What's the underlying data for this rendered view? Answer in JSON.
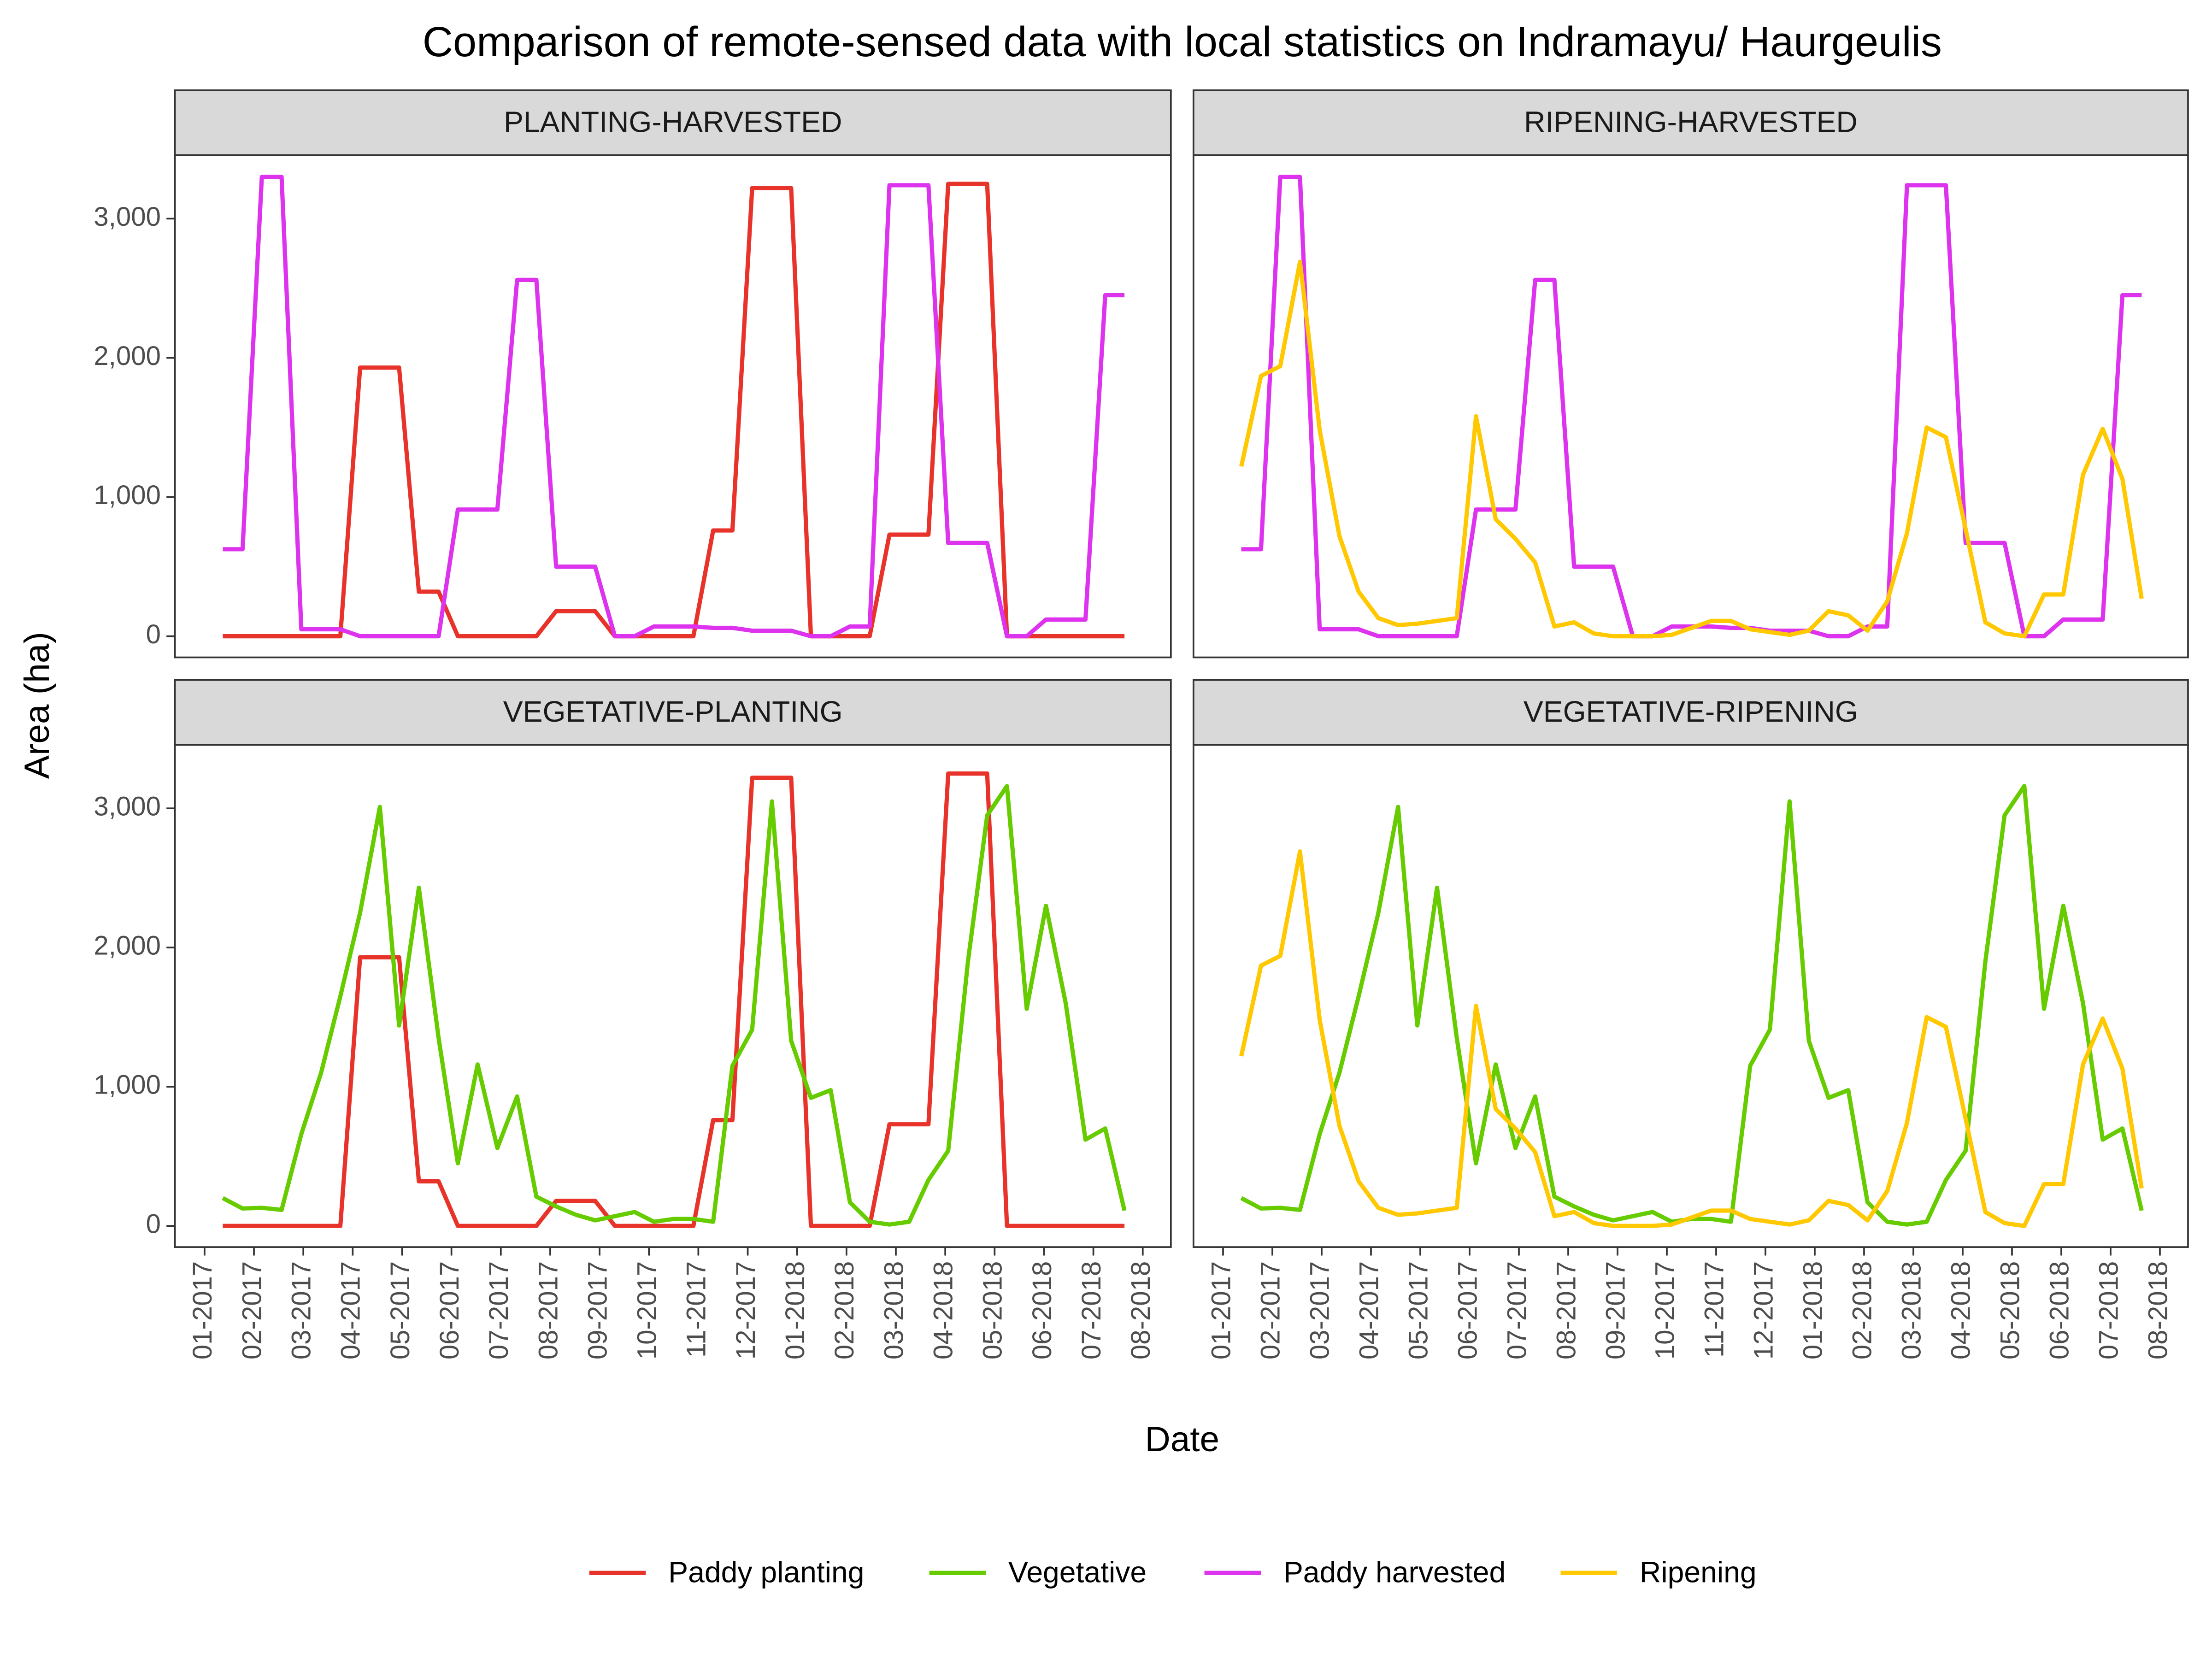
{
  "title": "Comparison of remote-sensed data with local statistics on Indramayu/ Haurgeulis",
  "x_label": "Date",
  "y_label": "Area (ha)",
  "chart_data": [
    {
      "type": "line",
      "title": "PLANTING-HARVESTED",
      "x": [
        0.37,
        0.77,
        1.16,
        1.56,
        1.96,
        2.36,
        2.75,
        3.15,
        3.55,
        3.94,
        4.34,
        4.74,
        5.13,
        5.53,
        5.93,
        6.33,
        6.72,
        7.12,
        7.52,
        7.91,
        8.31,
        8.71,
        9.1,
        9.5,
        9.9,
        10.3,
        10.69,
        11.09,
        11.49,
        11.88,
        12.28,
        12.68,
        13.07,
        13.47,
        13.87,
        14.27,
        14.66,
        15.06,
        15.46,
        15.85,
        16.25,
        16.65,
        17.04,
        17.44,
        17.84,
        18.24,
        18.63
      ],
      "xlim": [
        -0.6,
        19.57
      ],
      "ylim": [
        -152,
        3456
      ],
      "yticks": [
        0,
        {
          "value": 1000,
          "label": "1,000"
        },
        {
          "value": 2000,
          "label": "2,000"
        },
        {
          "value": 3000,
          "label": "3,000"
        }
      ],
      "series": [
        {
          "name": "Paddy planting",
          "color": "#e8332a",
          "values": [
            0,
            0,
            0,
            0,
            0,
            0,
            0,
            1930,
            1930,
            1930,
            320,
            320,
            0,
            0,
            0,
            0,
            0,
            180,
            180,
            180,
            0,
            0,
            0,
            0,
            0,
            760,
            760,
            3220,
            3220,
            3220,
            0,
            0,
            0,
            0,
            730,
            730,
            730,
            3250,
            3250,
            3250,
            0,
            0,
            0,
            0,
            0,
            0,
            0
          ]
        },
        {
          "name": "Paddy harvested",
          "color": "#dd33ee",
          "values": [
            625,
            625,
            3300,
            3300,
            50,
            50,
            50,
            0,
            0,
            0,
            0,
            0,
            910,
            910,
            910,
            2560,
            2560,
            500,
            500,
            500,
            0,
            0,
            70,
            70,
            70,
            60,
            60,
            40,
            40,
            40,
            0,
            0,
            70,
            70,
            3240,
            3240,
            3240,
            670,
            670,
            670,
            0,
            0,
            120,
            120,
            120,
            2450,
            2450
          ]
        }
      ]
    },
    {
      "type": "line",
      "title": "RIPENING-HARVESTED",
      "x": [
        0.37,
        0.77,
        1.16,
        1.56,
        1.96,
        2.36,
        2.75,
        3.15,
        3.55,
        3.94,
        4.34,
        4.74,
        5.13,
        5.53,
        5.93,
        6.33,
        6.72,
        7.12,
        7.52,
        7.91,
        8.31,
        8.71,
        9.1,
        9.5,
        9.9,
        10.3,
        10.69,
        11.09,
        11.49,
        11.88,
        12.28,
        12.68,
        13.07,
        13.47,
        13.87,
        14.27,
        14.66,
        15.06,
        15.46,
        15.85,
        16.25,
        16.65,
        17.04,
        17.44,
        17.84,
        18.24,
        18.63
      ],
      "xlim": [
        -0.6,
        19.57
      ],
      "ylim": [
        -152,
        3456
      ],
      "series": [
        {
          "name": "Paddy harvested",
          "color": "#dd33ee",
          "values": [
            625,
            625,
            3300,
            3300,
            50,
            50,
            50,
            0,
            0,
            0,
            0,
            0,
            910,
            910,
            910,
            2560,
            2560,
            500,
            500,
            500,
            0,
            0,
            70,
            70,
            70,
            60,
            60,
            40,
            40,
            40,
            0,
            0,
            70,
            70,
            3240,
            3240,
            3240,
            670,
            670,
            670,
            0,
            0,
            120,
            120,
            120,
            2450,
            2450
          ]
        },
        {
          "name": "Ripening",
          "color": "#ffc800",
          "values": [
            1220,
            1870,
            1940,
            2690,
            1480,
            720,
            320,
            130,
            80,
            90,
            110,
            130,
            1580,
            840,
            700,
            530,
            70,
            100,
            20,
            0,
            0,
            0,
            10,
            60,
            110,
            110,
            50,
            30,
            10,
            40,
            180,
            150,
            40,
            250,
            740,
            1500,
            1430,
            770,
            100,
            20,
            0,
            300,
            300,
            1160,
            1490,
            1130,
            270
          ]
        }
      ]
    },
    {
      "type": "line",
      "title": "VEGETATIVE-PLANTING",
      "x": [
        0.37,
        0.77,
        1.16,
        1.56,
        1.96,
        2.36,
        2.75,
        3.15,
        3.55,
        3.94,
        4.34,
        4.74,
        5.13,
        5.53,
        5.93,
        6.33,
        6.72,
        7.12,
        7.52,
        7.91,
        8.31,
        8.71,
        9.1,
        9.5,
        9.9,
        10.3,
        10.69,
        11.09,
        11.49,
        11.88,
        12.28,
        12.68,
        13.07,
        13.47,
        13.87,
        14.27,
        14.66,
        15.06,
        15.46,
        15.85,
        16.25,
        16.65,
        17.04,
        17.44,
        17.84,
        18.24,
        18.63
      ],
      "xlim": [
        -0.6,
        19.57
      ],
      "ylim": [
        -152,
        3456
      ],
      "yticks": [
        0,
        {
          "value": 1000,
          "label": "1,000"
        },
        {
          "value": 2000,
          "label": "2,000"
        },
        {
          "value": 3000,
          "label": "3,000"
        }
      ],
      "xticks": [
        {
          "value": 0,
          "label": "01-2017"
        },
        {
          "value": 1,
          "label": "02-2017"
        },
        {
          "value": 2,
          "label": "03-2017"
        },
        {
          "value": 3,
          "label": "04-2017"
        },
        {
          "value": 4,
          "label": "05-2017"
        },
        {
          "value": 5,
          "label": "06-2017"
        },
        {
          "value": 6,
          "label": "07-2017"
        },
        {
          "value": 7,
          "label": "08-2017"
        },
        {
          "value": 8,
          "label": "09-2017"
        },
        {
          "value": 9,
          "label": "10-2017"
        },
        {
          "value": 10,
          "label": "11-2017"
        },
        {
          "value": 11,
          "label": "12-2017"
        },
        {
          "value": 12,
          "label": "01-2018"
        },
        {
          "value": 13,
          "label": "02-2018"
        },
        {
          "value": 14,
          "label": "03-2018"
        },
        {
          "value": 15,
          "label": "04-2018"
        },
        {
          "value": 16,
          "label": "05-2018"
        },
        {
          "value": 17,
          "label": "06-2018"
        },
        {
          "value": 18,
          "label": "07-2018"
        },
        {
          "value": 19,
          "label": "08-2018"
        }
      ],
      "series": [
        {
          "name": "Paddy planting",
          "color": "#e8332a",
          "values": [
            0,
            0,
            0,
            0,
            0,
            0,
            0,
            1930,
            1930,
            1930,
            320,
            320,
            0,
            0,
            0,
            0,
            0,
            180,
            180,
            180,
            0,
            0,
            0,
            0,
            0,
            760,
            760,
            3220,
            3220,
            3220,
            0,
            0,
            0,
            0,
            730,
            730,
            730,
            3250,
            3250,
            3250,
            0,
            0,
            0,
            0,
            0,
            0,
            0
          ]
        },
        {
          "name": "Vegetative",
          "color": "#66cc00",
          "values": [
            200,
            125,
            130,
            115,
            660,
            1100,
            1650,
            2250,
            3010,
            1440,
            2430,
            1350,
            450,
            1160,
            560,
            930,
            210,
            140,
            80,
            40,
            70,
            100,
            30,
            50,
            50,
            30,
            1150,
            1410,
            3050,
            1330,
            920,
            975,
            170,
            30,
            10,
            30,
            330,
            540,
            1900,
            2950,
            3160,
            1560,
            2300,
            1600,
            620,
            700,
            110
          ]
        }
      ]
    },
    {
      "type": "line",
      "title": "VEGETATIVE-RIPENING",
      "x": [
        0.37,
        0.77,
        1.16,
        1.56,
        1.96,
        2.36,
        2.75,
        3.15,
        3.55,
        3.94,
        4.34,
        4.74,
        5.13,
        5.53,
        5.93,
        6.33,
        6.72,
        7.12,
        7.52,
        7.91,
        8.31,
        8.71,
        9.1,
        9.5,
        9.9,
        10.3,
        10.69,
        11.09,
        11.49,
        11.88,
        12.28,
        12.68,
        13.07,
        13.47,
        13.87,
        14.27,
        14.66,
        15.06,
        15.46,
        15.85,
        16.25,
        16.65,
        17.04,
        17.44,
        17.84,
        18.24,
        18.63
      ],
      "xlim": [
        -0.6,
        19.57
      ],
      "ylim": [
        -152,
        3456
      ],
      "xticks": [
        {
          "value": 0,
          "label": "01-2017"
        },
        {
          "value": 1,
          "label": "02-2017"
        },
        {
          "value": 2,
          "label": "03-2017"
        },
        {
          "value": 3,
          "label": "04-2017"
        },
        {
          "value": 4,
          "label": "05-2017"
        },
        {
          "value": 5,
          "label": "06-2017"
        },
        {
          "value": 6,
          "label": "07-2017"
        },
        {
          "value": 7,
          "label": "08-2017"
        },
        {
          "value": 8,
          "label": "09-2017"
        },
        {
          "value": 9,
          "label": "10-2017"
        },
        {
          "value": 10,
          "label": "11-2017"
        },
        {
          "value": 11,
          "label": "12-2017"
        },
        {
          "value": 12,
          "label": "01-2018"
        },
        {
          "value": 13,
          "label": "02-2018"
        },
        {
          "value": 14,
          "label": "03-2018"
        },
        {
          "value": 15,
          "label": "04-2018"
        },
        {
          "value": 16,
          "label": "05-2018"
        },
        {
          "value": 17,
          "label": "06-2018"
        },
        {
          "value": 18,
          "label": "07-2018"
        },
        {
          "value": 19,
          "label": "08-2018"
        }
      ],
      "series": [
        {
          "name": "Vegetative",
          "color": "#66cc00",
          "values": [
            200,
            125,
            130,
            115,
            660,
            1100,
            1650,
            2250,
            3010,
            1440,
            2430,
            1350,
            450,
            1160,
            560,
            930,
            210,
            140,
            80,
            40,
            70,
            100,
            30,
            50,
            50,
            30,
            1150,
            1410,
            3050,
            1330,
            920,
            975,
            170,
            30,
            10,
            30,
            330,
            540,
            1900,
            2950,
            3160,
            1560,
            2300,
            1600,
            620,
            700,
            110
          ]
        },
        {
          "name": "Ripening",
          "color": "#ffc800",
          "values": [
            1220,
            1870,
            1940,
            2690,
            1480,
            720,
            320,
            130,
            80,
            90,
            110,
            130,
            1580,
            840,
            700,
            530,
            70,
            100,
            20,
            0,
            0,
            0,
            10,
            60,
            110,
            110,
            50,
            30,
            10,
            40,
            180,
            150,
            40,
            250,
            740,
            1500,
            1430,
            770,
            100,
            20,
            0,
            300,
            300,
            1160,
            1490,
            1130,
            270
          ]
        }
      ]
    }
  ]
}
